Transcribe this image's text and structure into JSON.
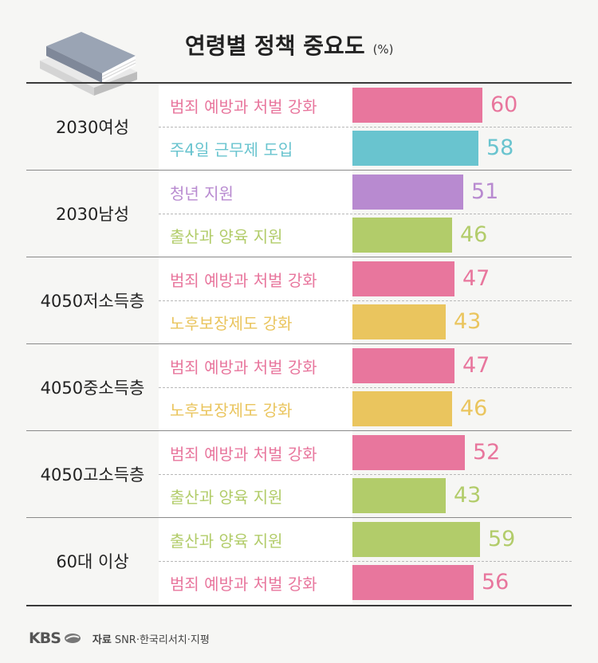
{
  "title": "연령별 정책 중요도",
  "unit": "(%)",
  "footer": {
    "brand": "KBS",
    "source_label": "자료",
    "source_text": "SNR·한국리서치·지평"
  },
  "colors": {
    "crime": "#e8769d",
    "workweek": "#69c4cf",
    "youth": "#b88ad0",
    "birth": "#b2cc6a",
    "pension": "#eac55e"
  },
  "chart_data": {
    "type": "bar",
    "orientation": "horizontal",
    "title": "연령별 정책 중요도",
    "unit": "(%)",
    "xlim": [
      0,
      60
    ],
    "groups": [
      {
        "group": "2030여성",
        "items": [
          {
            "label": "범죄 예방과 처벌 강화",
            "value": 60,
            "color": "#e8769d"
          },
          {
            "label": "주4일 근무제 도입",
            "value": 58,
            "color": "#69c4cf"
          }
        ]
      },
      {
        "group": "2030남성",
        "items": [
          {
            "label": "청년 지원",
            "value": 51,
            "color": "#b88ad0"
          },
          {
            "label": "출산과 양육 지원",
            "value": 46,
            "color": "#b2cc6a"
          }
        ]
      },
      {
        "group": "4050저소득층",
        "items": [
          {
            "label": "범죄 예방과 처벌 강화",
            "value": 47,
            "color": "#e8769d"
          },
          {
            "label": "노후보장제도 강화",
            "value": 43,
            "color": "#eac55e"
          }
        ]
      },
      {
        "group": "4050중소득층",
        "items": [
          {
            "label": "범죄 예방과 처벌 강화",
            "value": 47,
            "color": "#e8769d"
          },
          {
            "label": "노후보장제도 강화",
            "value": 46,
            "color": "#eac55e"
          }
        ]
      },
      {
        "group": "4050고소득층",
        "items": [
          {
            "label": "범죄 예방과 처벌 강화",
            "value": 52,
            "color": "#e8769d"
          },
          {
            "label": "출산과 양육 지원",
            "value": 43,
            "color": "#b2cc6a"
          }
        ]
      },
      {
        "group": "60대 이상",
        "items": [
          {
            "label": "출산과 양육 지원",
            "value": 59,
            "color": "#b2cc6a"
          },
          {
            "label": "범죄 예방과 처벌 강화",
            "value": 56,
            "color": "#e8769d"
          }
        ]
      }
    ]
  }
}
